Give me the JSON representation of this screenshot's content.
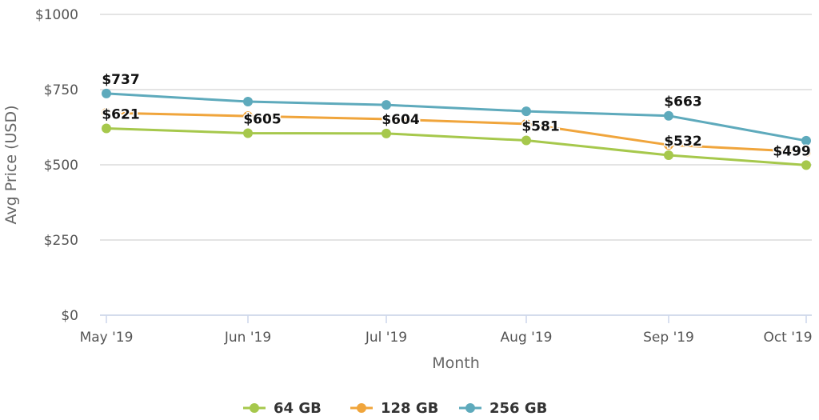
{
  "chart_data": {
    "type": "line",
    "title": "",
    "xlabel": "Month",
    "ylabel": "Avg Price (USD)",
    "categories": [
      "May '19",
      "Jun '19",
      "Jul '19",
      "Aug '19",
      "Sep '19",
      "Oct '19"
    ],
    "ylim": [
      0,
      1000
    ],
    "yticks": [
      0,
      250,
      500,
      750,
      1000
    ],
    "ytick_labels": [
      "$0",
      "$250",
      "$500",
      "$750",
      "$1000"
    ],
    "grid": true,
    "legend_position": "bottom",
    "series": [
      {
        "name": "64 GB",
        "color": "#a6c84c",
        "values": [
          621,
          605,
          604,
          581,
          532,
          499
        ],
        "labels": [
          "$621",
          "$605",
          "$604",
          "$581",
          "$532",
          "$499"
        ]
      },
      {
        "name": "128 GB",
        "color": "#f0a53c",
        "values": [
          673,
          662,
          652,
          636,
          566,
          543
        ],
        "labels": [
          null,
          null,
          null,
          null,
          null,
          null
        ]
      },
      {
        "name": "256 GB",
        "color": "#5eaabc",
        "values": [
          737,
          710,
          699,
          678,
          663,
          580
        ],
        "labels": [
          "$737",
          null,
          null,
          null,
          "$663",
          null
        ]
      }
    ]
  }
}
